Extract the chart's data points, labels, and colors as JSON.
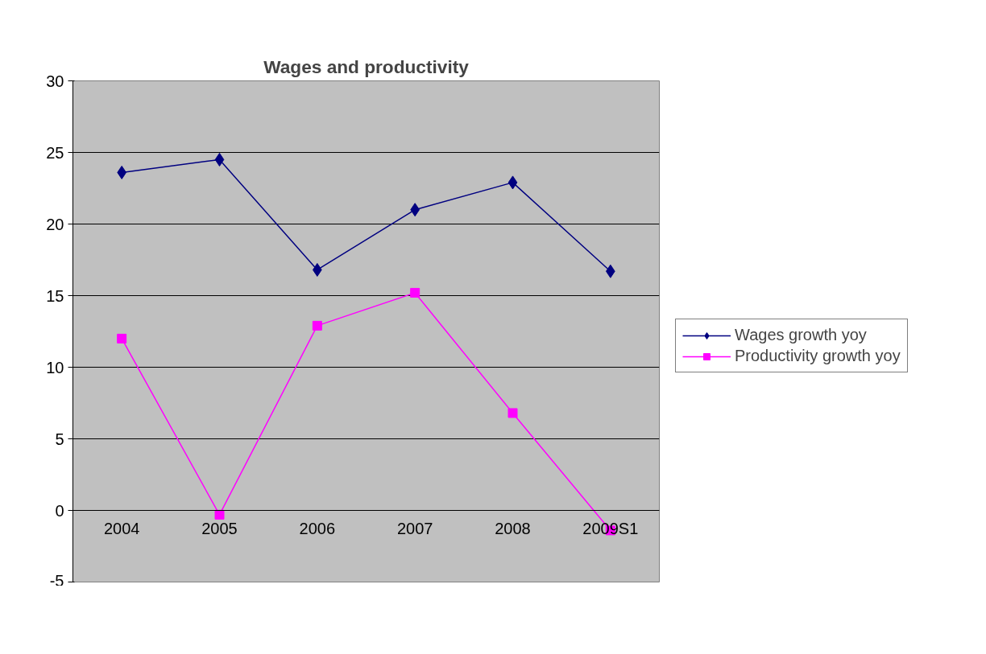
{
  "chart_data": {
    "type": "line",
    "title": "Wages and productivity",
    "categories": [
      "2004",
      "2005",
      "2006",
      "2007",
      "2008",
      "2009S1"
    ],
    "series": [
      {
        "name": "Wages growth yoy",
        "color": "#000080",
        "marker": "diamond",
        "values": [
          23.6,
          24.5,
          16.8,
          21.0,
          22.9,
          16.7
        ]
      },
      {
        "name": "Productivity growth yoy",
        "color": "#ff00ff",
        "marker": "square",
        "values": [
          12.0,
          -0.3,
          12.9,
          15.2,
          6.8,
          -1.4
        ]
      }
    ],
    "ylim": [
      -5,
      30
    ],
    "yticks": [
      -5,
      0,
      5,
      10,
      15,
      20,
      25,
      30
    ],
    "grid": "y",
    "legend": "right"
  }
}
